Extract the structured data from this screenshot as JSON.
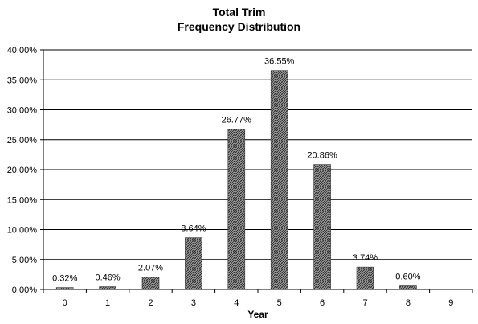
{
  "chart_data": {
    "type": "bar",
    "title_lines": [
      "Total Trim",
      "Frequency Distribution"
    ],
    "xlabel": "Year",
    "ylabel": "",
    "categories": [
      "0",
      "1",
      "2",
      "3",
      "4",
      "5",
      "6",
      "7",
      "8",
      "9"
    ],
    "values": [
      0.32,
      0.46,
      2.07,
      8.64,
      26.77,
      36.55,
      20.86,
      3.74,
      0.6,
      null
    ],
    "data_labels": [
      "0.32%",
      "0.46%",
      "2.07%",
      "8.64%",
      "26.77%",
      "36.55%",
      "20.86%",
      "3.74%",
      "0.60%",
      ""
    ],
    "y_ticks": [
      0,
      5,
      10,
      15,
      20,
      25,
      30,
      35,
      40
    ],
    "y_tick_labels": [
      "0.00%",
      "5.00%",
      "10.00%",
      "15.00%",
      "20.00%",
      "25.00%",
      "30.00%",
      "35.00%",
      "40.00%"
    ],
    "ylim": [
      0,
      40
    ],
    "grid": true,
    "legend": "none",
    "bar_fill": "crosshatch",
    "colors": {
      "bar_stroke": "#333333",
      "grid": "#000000",
      "text": "#000000"
    }
  }
}
